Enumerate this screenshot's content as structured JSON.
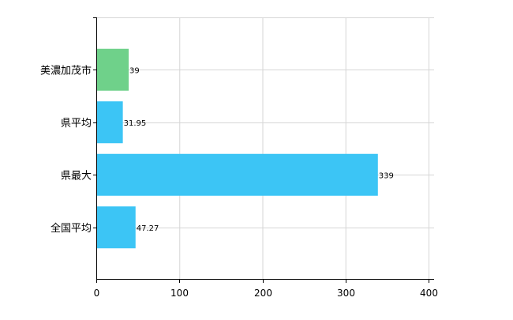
{
  "chart_data": {
    "type": "bar",
    "orientation": "horizontal",
    "categories": [
      "美濃加茂市",
      "県平均",
      "県最大",
      "全国平均"
    ],
    "values": [
      39,
      31.95,
      339,
      47.27
    ],
    "data_labels": [
      "39",
      "31.95",
      "339",
      "47.27"
    ],
    "bar_colors": [
      "#6fd18a",
      "#3cc5f5",
      "#3cc5f5",
      "#3cc5f5"
    ],
    "xlim": [
      0,
      400
    ],
    "x_ticks": [
      0,
      100,
      200,
      300,
      400
    ],
    "x_tick_labels": [
      "0",
      "100",
      "200",
      "300",
      "400"
    ],
    "grid": true,
    "legend": "none"
  }
}
